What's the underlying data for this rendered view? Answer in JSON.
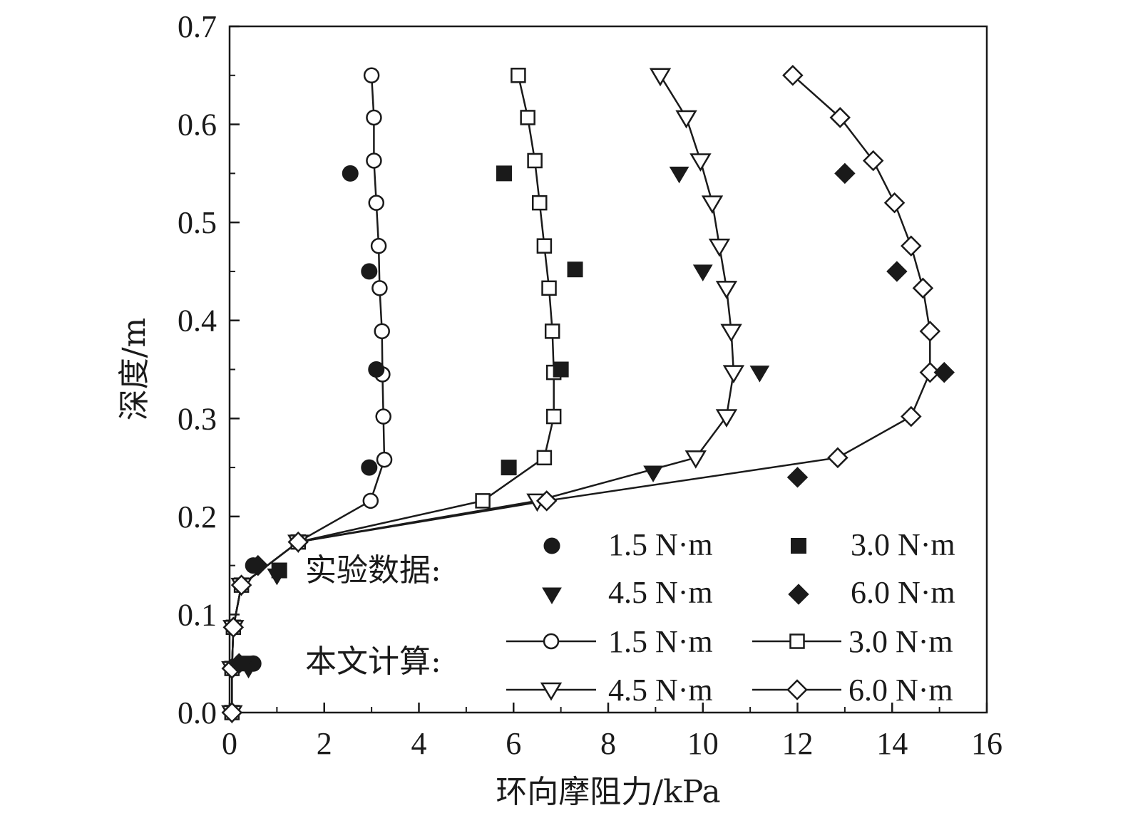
{
  "chart_data": {
    "type": "scatter",
    "xlabel": "环向摩阻力/kPa",
    "ylabel": "深度/m",
    "xlim": [
      0,
      16
    ],
    "ylim": [
      0,
      0.7
    ],
    "xticks": [
      "0",
      "2",
      "4",
      "6",
      "8",
      "10",
      "12",
      "14",
      "16"
    ],
    "yticks": [
      "0.0",
      "0.1",
      "0.2",
      "0.3",
      "0.4",
      "0.5",
      "0.6",
      "0.7"
    ],
    "grid": false,
    "legend": {
      "experimental_label": "实验数据:",
      "calculated_label": "本文计算:",
      "entries": [
        "1.5 N·m",
        "3.0 N·m",
        "4.5 N·m",
        "6.0 N·m"
      ]
    },
    "experimental_series": [
      {
        "name": "1.5 N·m",
        "marker": "filled-circle",
        "points": [
          [
            0.5,
            0.05
          ],
          [
            0.5,
            0.15
          ],
          [
            2.95,
            0.25
          ],
          [
            3.1,
            0.35
          ],
          [
            2.95,
            0.45
          ],
          [
            2.55,
            0.55
          ]
        ]
      },
      {
        "name": "3.0 N·m",
        "marker": "filled-square",
        "points": [
          [
            0.3,
            0.05
          ],
          [
            1.05,
            0.145
          ],
          [
            5.9,
            0.25
          ],
          [
            7.0,
            0.35
          ],
          [
            7.3,
            0.452
          ],
          [
            5.8,
            0.55
          ]
        ]
      },
      {
        "name": "4.5 N·m",
        "marker": "filled-triangle",
        "points": [
          [
            0.4,
            0.045
          ],
          [
            1.0,
            0.14
          ],
          [
            8.95,
            0.245
          ],
          [
            11.2,
            0.347
          ],
          [
            10.0,
            0.45
          ],
          [
            9.5,
            0.55
          ]
        ]
      },
      {
        "name": "6.0 N·m",
        "marker": "filled-diamond",
        "points": [
          [
            0.2,
            0.05
          ],
          [
            0.6,
            0.15
          ],
          [
            12.0,
            0.24
          ],
          [
            15.1,
            0.347
          ],
          [
            14.1,
            0.45
          ],
          [
            13.0,
            0.55
          ]
        ]
      }
    ],
    "calculated_series": [
      {
        "name": "1.5 N·m",
        "marker": "open-circle",
        "points": [
          [
            0.05,
            0
          ],
          [
            0.05,
            0.045
          ],
          [
            0.08,
            0.087
          ],
          [
            0.25,
            0.13
          ],
          [
            1.45,
            0.174
          ],
          [
            2.98,
            0.216
          ],
          [
            3.27,
            0.258
          ],
          [
            3.25,
            0.302
          ],
          [
            3.23,
            0.345
          ],
          [
            3.22,
            0.389
          ],
          [
            3.17,
            0.433
          ],
          [
            3.15,
            0.476
          ],
          [
            3.1,
            0.52
          ],
          [
            3.05,
            0.563
          ],
          [
            3.05,
            0.607
          ],
          [
            3.0,
            0.65
          ]
        ]
      },
      {
        "name": "3.0 N·m",
        "marker": "open-square",
        "points": [
          [
            0.05,
            0
          ],
          [
            0.05,
            0.045
          ],
          [
            0.08,
            0.087
          ],
          [
            0.25,
            0.13
          ],
          [
            1.45,
            0.174
          ],
          [
            5.35,
            0.216
          ],
          [
            6.65,
            0.26
          ],
          [
            6.85,
            0.302
          ],
          [
            6.85,
            0.347
          ],
          [
            6.82,
            0.389
          ],
          [
            6.75,
            0.433
          ],
          [
            6.65,
            0.476
          ],
          [
            6.55,
            0.52
          ],
          [
            6.45,
            0.563
          ],
          [
            6.3,
            0.607
          ],
          [
            6.1,
            0.65
          ]
        ]
      },
      {
        "name": "4.5 N·m",
        "marker": "open-triangle",
        "points": [
          [
            0.05,
            0
          ],
          [
            0.05,
            0.045
          ],
          [
            0.08,
            0.087
          ],
          [
            0.25,
            0.13
          ],
          [
            1.45,
            0.174
          ],
          [
            6.5,
            0.216
          ],
          [
            9.85,
            0.26
          ],
          [
            10.5,
            0.302
          ],
          [
            10.65,
            0.347
          ],
          [
            10.6,
            0.389
          ],
          [
            10.5,
            0.433
          ],
          [
            10.35,
            0.476
          ],
          [
            10.2,
            0.52
          ],
          [
            9.95,
            0.563
          ],
          [
            9.65,
            0.607
          ],
          [
            9.1,
            0.65
          ]
        ]
      },
      {
        "name": "6.0 N·m",
        "marker": "open-diamond",
        "points": [
          [
            0.05,
            0
          ],
          [
            0.05,
            0.045
          ],
          [
            0.08,
            0.087
          ],
          [
            0.25,
            0.13
          ],
          [
            1.45,
            0.174
          ],
          [
            6.7,
            0.216
          ],
          [
            12.85,
            0.26
          ],
          [
            14.4,
            0.302
          ],
          [
            14.8,
            0.347
          ],
          [
            14.8,
            0.389
          ],
          [
            14.65,
            0.433
          ],
          [
            14.4,
            0.476
          ],
          [
            14.05,
            0.52
          ],
          [
            13.6,
            0.563
          ],
          [
            12.9,
            0.607
          ],
          [
            11.9,
            0.65
          ]
        ]
      }
    ]
  }
}
